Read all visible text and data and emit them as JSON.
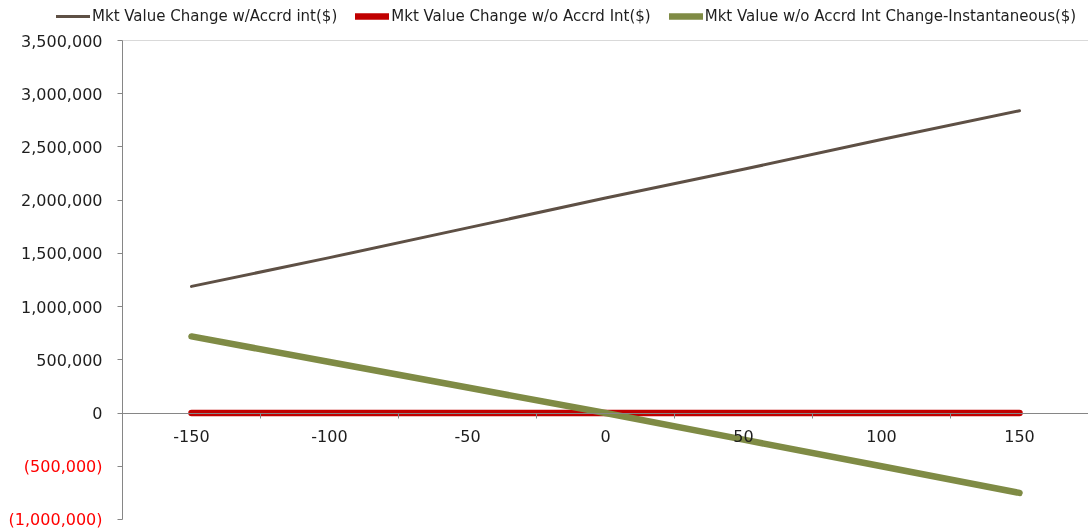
{
  "chart_data": {
    "type": "line",
    "categories": [
      "-150",
      "-100",
      "-50",
      "0",
      "50",
      "100",
      "150"
    ],
    "series": [
      {
        "name": "Mkt Value Change w/Accrd int($)",
        "color": "#5e5045",
        "values": [
          1190000,
          1460000,
          1740000,
          2020000,
          2290000,
          2570000,
          2840000
        ]
      },
      {
        "name": "Mkt Value Change w/o Accrd Int($)",
        "color": "#c00000",
        "values": [
          0,
          0,
          0,
          0,
          0,
          0,
          0
        ]
      },
      {
        "name": "Mkt Value w/o Accrd Int Change-Instantaneous($)",
        "color": "#7f8b45",
        "values": [
          720000,
          480000,
          240000,
          0,
          -250000,
          -500000,
          -750000
        ]
      }
    ],
    "ylim": [
      -1000000,
      3500000
    ],
    "yticks": [
      {
        "value": -1000000,
        "label": "(1,000,000)"
      },
      {
        "value": -500000,
        "label": "(500,000)"
      },
      0,
      {
        "value": 500000,
        "label": "500,000"
      },
      {
        "value": 1000000,
        "label": "1,000,000"
      },
      {
        "value": 1500000,
        "label": "1,500,000"
      },
      {
        "value": 2000000,
        "label": "2,000,000"
      },
      {
        "value": 2500000,
        "label": "2,500,000"
      },
      {
        "value": 3000000,
        "label": "3,000,000"
      },
      {
        "value": 3500000,
        "label": "3,500,000"
      }
    ],
    "legend": "top"
  }
}
